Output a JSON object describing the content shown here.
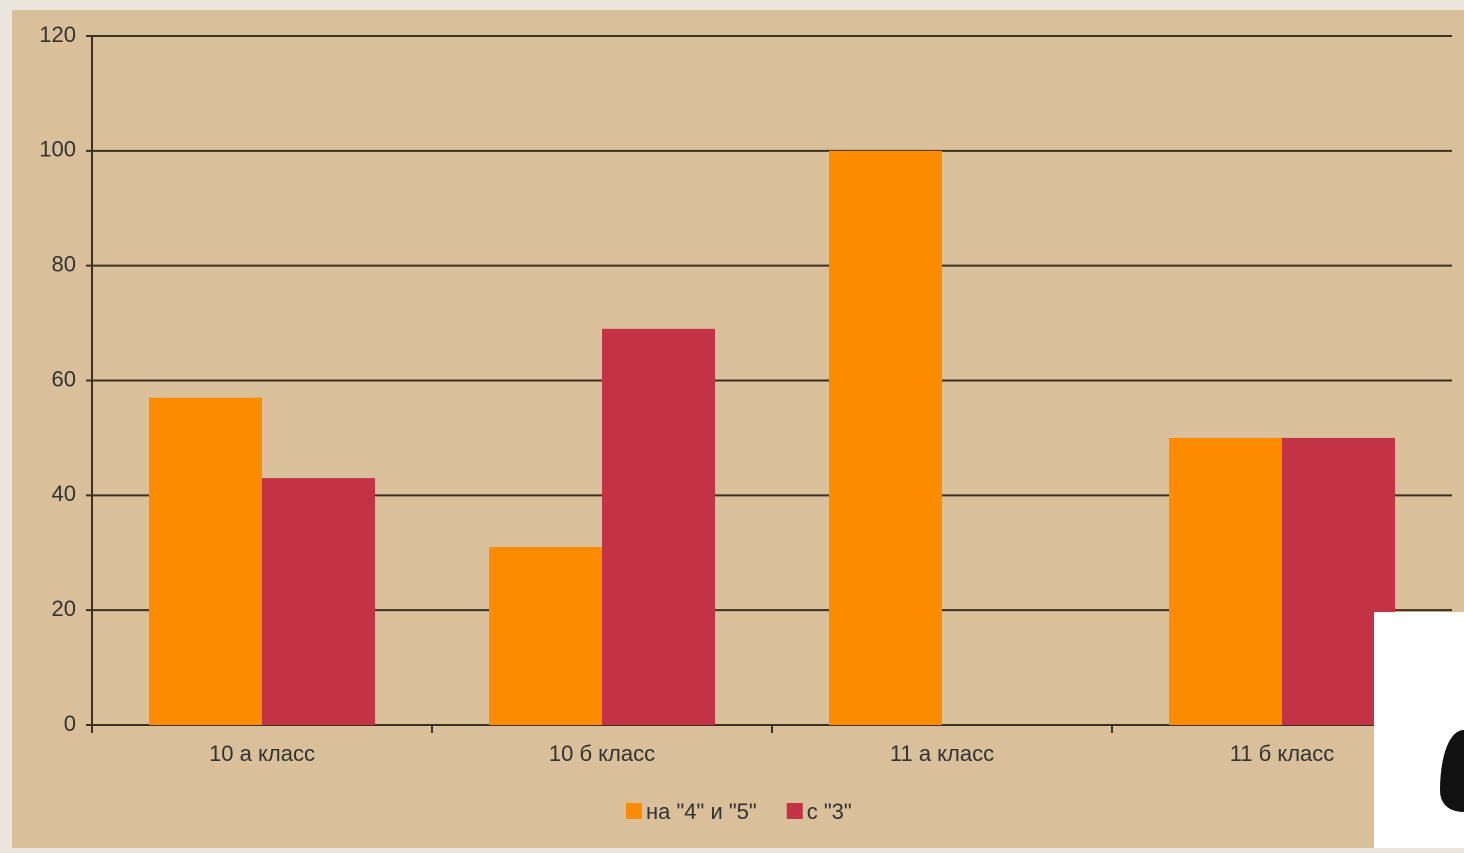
{
  "chart_data": {
    "type": "bar",
    "categories": [
      "10 а класс",
      "10 б класс",
      "11 а класс",
      "11 б класс"
    ],
    "series": [
      {
        "name": "на \"4\" и \"5\"",
        "color": "#ff8c00",
        "values": [
          57,
          31,
          100,
          50
        ]
      },
      {
        "name": "с \"3\"",
        "color": "#c43246",
        "values": [
          43,
          69,
          0,
          50
        ]
      }
    ],
    "ylim": [
      0,
      120
    ],
    "yticks": [
      0,
      20,
      40,
      60,
      80,
      100,
      120
    ],
    "grid": true,
    "legend": "bottom"
  }
}
